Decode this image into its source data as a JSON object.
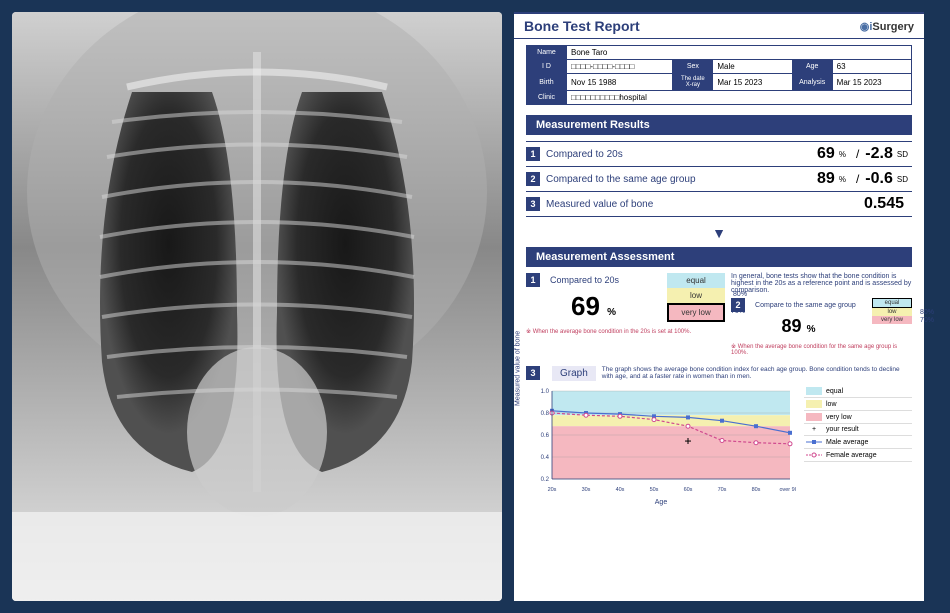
{
  "colors": {
    "navy": "#2d3f7a",
    "bg": "#1a3456",
    "equal": "#c0e8f0",
    "low": "#f5f0b0",
    "verylow": "#f5b8c0",
    "male": "#4a6fd0",
    "female": "#d04a8f"
  },
  "header": {
    "title": "Bone Test Report",
    "logo_prefix": "◉i",
    "logo_text": "Surgery"
  },
  "patient": {
    "name_lbl": "Name",
    "name": "Bone Taro",
    "id_lbl": "I D",
    "id": "□□□□-□□□□-□□□□",
    "sex_lbl": "Sex",
    "sex": "Male",
    "age_lbl": "Age",
    "age": "63",
    "birth_lbl": "Birth",
    "birth": "Nov 15 1988",
    "xray_lbl": "The date X-ray",
    "xray": "Mar 15 2023",
    "analysis_lbl": "Analysis",
    "analysis": "Mar 15 2023",
    "clinic_lbl": "Clinic",
    "clinic": "□□□□□□□□□□hospital"
  },
  "results": {
    "heading": "Measurement Results",
    "rows": [
      {
        "n": "1",
        "label": "Compared to 20s",
        "v1": "69",
        "u1": "%",
        "v2": "-2.8",
        "u2": "SD"
      },
      {
        "n": "2",
        "label": "Compared to the same age group",
        "v1": "89",
        "u1": "%",
        "v2": "-0.6",
        "u2": "SD"
      },
      {
        "n": "3",
        "label": "Measured value of bone",
        "v1": "",
        "u1": "",
        "v2": "0.545",
        "u2": ""
      }
    ]
  },
  "assessment": {
    "heading": "Measurement Assessment",
    "left": {
      "n": "1",
      "title": "Compared to 20s",
      "value": "69",
      "unit": "%",
      "gauge": [
        {
          "lbl": "equal",
          "mk": ""
        },
        {
          "lbl": "low",
          "mk": "80%"
        },
        {
          "lbl": "very low",
          "mk": "70%"
        }
      ],
      "highlight": "verylow",
      "note": "※ When the average bone condition in the 20s is set at 100%."
    },
    "right": {
      "desc": "In general, bone tests show that the bone condition is highest in the 20s as a reference point and is assessed by comparison.",
      "n": "2",
      "title": "Compare to the same age group",
      "value": "89",
      "unit": "%",
      "gauge": [
        {
          "lbl": "equal",
          "mk": ""
        },
        {
          "lbl": "low",
          "mk": "80%"
        },
        {
          "lbl": "very low",
          "mk": "70%"
        }
      ],
      "highlight": "equal",
      "note": "※ When the average bone condition for the same age group is 100%."
    }
  },
  "graph": {
    "n": "3",
    "title": "Graph",
    "desc": "The graph shows the average bone condition index for each age group. Bone condition tends to decline with age, and at a faster rate in women than in men.",
    "ylabel": "Measured value of bone",
    "xlabel": "Age",
    "yticks": [
      "1.0",
      "0.8",
      "0.6",
      "0.4",
      "0.2"
    ],
    "xticks": [
      "20s",
      "30s",
      "40s",
      "50s",
      "60s",
      "70s",
      "80s",
      "over 90s"
    ],
    "bands": [
      {
        "from": 1.0,
        "to": 0.78,
        "color": "#c0e8f0"
      },
      {
        "from": 0.78,
        "to": 0.68,
        "color": "#f5f0b0"
      },
      {
        "from": 0.68,
        "to": 0.2,
        "color": "#f5b8c0"
      }
    ],
    "male": [
      0.82,
      0.8,
      0.79,
      0.77,
      0.76,
      0.73,
      0.68,
      0.62
    ],
    "female": [
      0.8,
      0.78,
      0.77,
      0.74,
      0.68,
      0.55,
      0.53,
      0.52
    ],
    "your_x": 4,
    "your_y": 0.545,
    "legend": [
      {
        "type": "sw",
        "color": "#c0e8f0",
        "label": "equal"
      },
      {
        "type": "sw",
        "color": "#f5f0b0",
        "label": "low"
      },
      {
        "type": "sw",
        "color": "#f5b8c0",
        "label": "very low"
      },
      {
        "type": "cross",
        "label": "your result"
      },
      {
        "type": "line",
        "color": "#4a6fd0",
        "marker": "sq",
        "label": "Male average"
      },
      {
        "type": "line",
        "color": "#d04a8f",
        "marker": "ci",
        "label": "Female average"
      }
    ]
  }
}
